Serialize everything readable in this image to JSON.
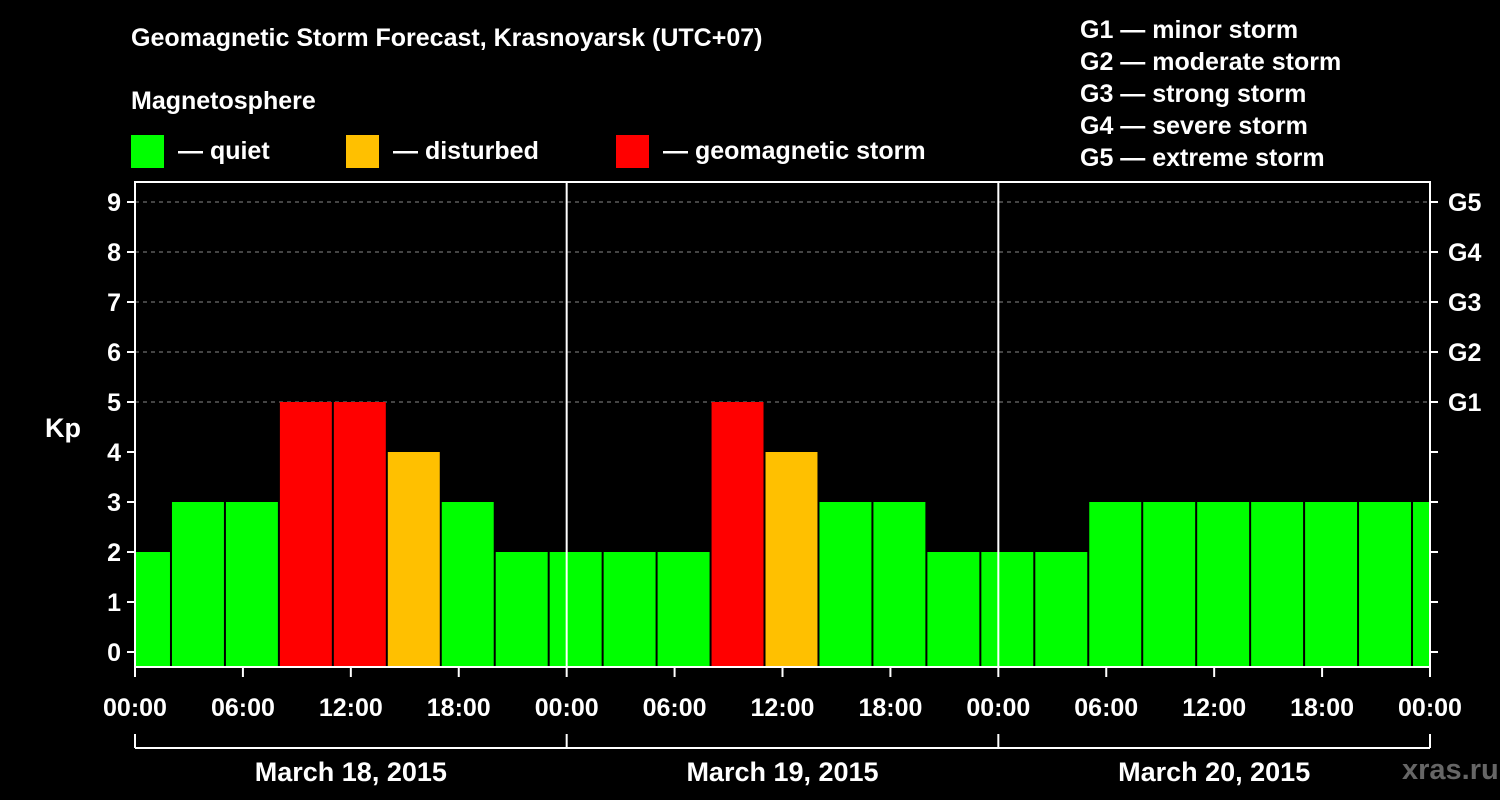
{
  "header": {
    "title": "Geomagnetic Storm Forecast, Krasnoyarsk (UTC+07)",
    "subtitle": "Magnetosphere"
  },
  "legend": [
    {
      "label": "— quiet",
      "color": "#00ff00"
    },
    {
      "label": "— disturbed",
      "color": "#ffc000"
    },
    {
      "label": "— geomagnetic storm",
      "color": "#ff0000"
    }
  ],
  "storm_levels": [
    "G1 — minor storm",
    "G2 — moderate storm",
    "G3 — strong storm",
    "G4 — severe storm",
    "G5 — extreme storm"
  ],
  "watermark": "xras.ru",
  "chart_data": {
    "type": "bar",
    "title": "Geomagnetic Storm Forecast, Krasnoyarsk (UTC+07)",
    "ylabel": "Kp",
    "ylim": [
      0,
      9
    ],
    "yticks": [
      "0",
      "1",
      "2",
      "3",
      "4",
      "5",
      "6",
      "7",
      "8",
      "9"
    ],
    "right_axis_labels": [
      {
        "kp": 5,
        "label": "G1"
      },
      {
        "kp": 6,
        "label": "G2"
      },
      {
        "kp": 7,
        "label": "G3"
      },
      {
        "kp": 8,
        "label": "G4"
      },
      {
        "kp": 9,
        "label": "G5"
      }
    ],
    "x_tick_labels": [
      "00:00",
      "06:00",
      "12:00",
      "18:00",
      "00:00",
      "06:00",
      "12:00",
      "18:00",
      "00:00",
      "06:00",
      "12:00",
      "18:00",
      "00:00"
    ],
    "days": [
      "March 18, 2015",
      "March 19, 2015",
      "March 20, 2015"
    ],
    "first_bar_start_hour": -1,
    "bar_hours": 3,
    "values": [
      2,
      3,
      3,
      5,
      5,
      4,
      3,
      2,
      2,
      2,
      2,
      5,
      4,
      3,
      3,
      2,
      2,
      2,
      3,
      3,
      3,
      3,
      3,
      3,
      3
    ],
    "thresholds": {
      "disturbed": 4,
      "storm": 5
    },
    "colors": {
      "quiet": "#00ff00",
      "disturbed": "#ffc000",
      "storm": "#ff0000"
    },
    "grid": true
  }
}
